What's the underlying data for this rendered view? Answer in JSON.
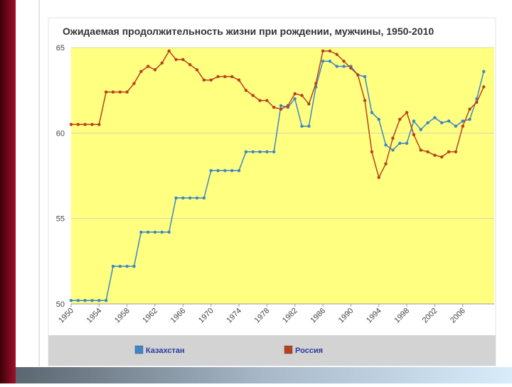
{
  "chart_data": {
    "type": "line",
    "title": "Ожидаемая продолжительность жизни при рождении, мужчины, 1950-2010",
    "x": [
      1950,
      1951,
      1952,
      1953,
      1954,
      1955,
      1956,
      1957,
      1958,
      1959,
      1960,
      1961,
      1962,
      1963,
      1964,
      1965,
      1966,
      1967,
      1968,
      1969,
      1970,
      1971,
      1972,
      1973,
      1974,
      1975,
      1976,
      1977,
      1978,
      1979,
      1980,
      1981,
      1982,
      1983,
      1984,
      1985,
      1986,
      1987,
      1988,
      1989,
      1990,
      1991,
      1992,
      1993,
      1994,
      1995,
      1996,
      1997,
      1998,
      1999,
      2000,
      2001,
      2002,
      2003,
      2004,
      2005,
      2006,
      2007,
      2008,
      2009
    ],
    "series": [
      {
        "name": "Казахстан",
        "color": "#3d85c6",
        "values": [
          50.2,
          50.2,
          50.2,
          50.2,
          50.2,
          50.2,
          52.2,
          52.2,
          52.2,
          52.2,
          54.2,
          54.2,
          54.2,
          54.2,
          54.2,
          56.2,
          56.2,
          56.2,
          56.2,
          56.2,
          57.8,
          57.8,
          57.8,
          57.8,
          57.8,
          58.9,
          58.9,
          58.9,
          58.9,
          58.9,
          61.6,
          61.5,
          62.0,
          60.4,
          60.4,
          62.7,
          64.2,
          64.2,
          63.9,
          63.9,
          63.9,
          63.4,
          63.3,
          61.2,
          60.8,
          59.3,
          59.0,
          59.4,
          59.4,
          60.7,
          60.2,
          60.6,
          60.9,
          60.6,
          60.7,
          60.4,
          60.7,
          60.8,
          62.0,
          63.6
        ]
      },
      {
        "name": "Россия",
        "color": "#b8401e",
        "values": [
          60.5,
          60.5,
          60.5,
          60.5,
          60.5,
          62.4,
          62.4,
          62.4,
          62.4,
          62.9,
          63.6,
          63.9,
          63.7,
          64.1,
          64.8,
          64.3,
          64.3,
          64.0,
          63.7,
          63.1,
          63.1,
          63.3,
          63.3,
          63.3,
          63.1,
          62.5,
          62.2,
          61.9,
          61.9,
          61.5,
          61.4,
          61.6,
          62.3,
          62.2,
          61.7,
          62.9,
          64.8,
          64.8,
          64.6,
          64.2,
          63.8,
          63.4,
          61.9,
          58.9,
          57.4,
          58.2,
          59.7,
          60.8,
          61.2,
          59.9,
          59.0,
          58.9,
          58.7,
          58.6,
          58.9,
          58.9,
          60.4,
          61.4,
          61.8,
          62.7
        ]
      }
    ],
    "xlim": [
      1950,
      2010.5
    ],
    "xticks": [
      1950,
      1954,
      1958,
      1962,
      1966,
      1970,
      1974,
      1978,
      1982,
      1986,
      1990,
      1994,
      1998,
      2002,
      2006
    ],
    "ylim": [
      50,
      65
    ],
    "yticks": [
      50,
      55,
      60,
      65
    ],
    "grid": true,
    "legend": "bottom"
  }
}
